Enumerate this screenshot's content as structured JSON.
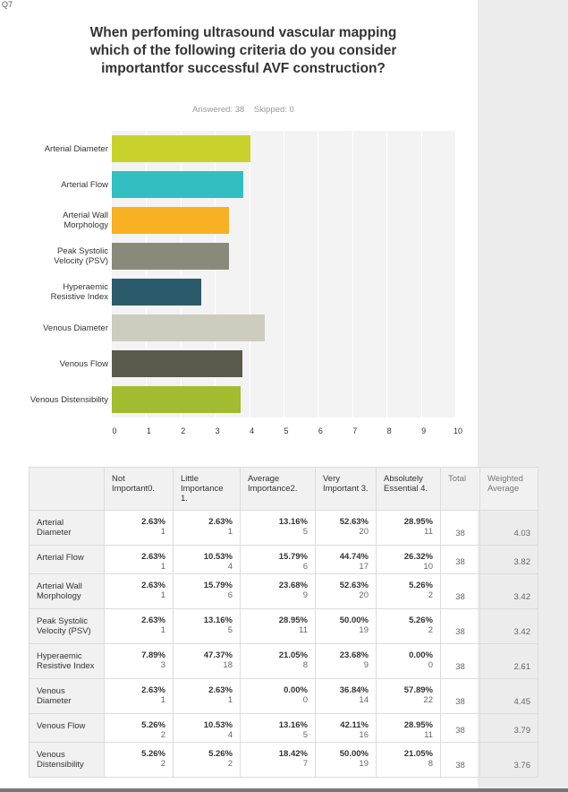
{
  "question": {
    "number_label": "Q7",
    "title": "When perfoming ultrasound vascular mapping which of the following criteria do you consider importantfor successful AVF construction?",
    "answered": "Answered: 38",
    "skipped": "Skipped: 0"
  },
  "chart_data": {
    "type": "bar",
    "orientation": "horizontal",
    "categories": [
      "Arterial Diameter",
      "Arterial Flow",
      "Arterial Wall Morphology",
      "Peak Systolic Velocity (PSV)",
      "Hyperaemic Resistive Index",
      "Venous Diameter",
      "Venous Flow",
      "Venous Distensibility"
    ],
    "values": [
      4.03,
      3.82,
      3.42,
      3.42,
      2.61,
      4.45,
      3.79,
      3.76
    ],
    "colors": [
      "#c9d22d",
      "#33bfc1",
      "#f7b122",
      "#8a8a7b",
      "#2b5b6b",
      "#ccccbf",
      "#5b5a4d",
      "#a2bc2f"
    ],
    "xlim": [
      0,
      10
    ],
    "xticks": [
      "0",
      "1",
      "2",
      "3",
      "4",
      "5",
      "6",
      "7",
      "8",
      "9",
      "10"
    ],
    "grid": true
  },
  "table": {
    "columns": [
      "Not Important0.",
      "Little Importance 1.",
      "Average Importance2.",
      "Very Important 3.",
      "Absolutely Essential 4.",
      "Total",
      "Weighted Average"
    ],
    "rows": [
      {
        "label": "Arterial Diameter",
        "cells": [
          {
            "pct": "2.63%",
            "n": "1"
          },
          {
            "pct": "2.63%",
            "n": "1"
          },
          {
            "pct": "13.16%",
            "n": "5"
          },
          {
            "pct": "52.63%",
            "n": "20"
          },
          {
            "pct": "28.95%",
            "n": "11"
          }
        ],
        "total": "38",
        "avg": "4.03"
      },
      {
        "label": "Arterial Flow",
        "cells": [
          {
            "pct": "2.63%",
            "n": "1"
          },
          {
            "pct": "10.53%",
            "n": "4"
          },
          {
            "pct": "15.79%",
            "n": "6"
          },
          {
            "pct": "44.74%",
            "n": "17"
          },
          {
            "pct": "26.32%",
            "n": "10"
          }
        ],
        "total": "38",
        "avg": "3.82"
      },
      {
        "label": "Arterial Wall Morphology",
        "cells": [
          {
            "pct": "2.63%",
            "n": "1"
          },
          {
            "pct": "15.79%",
            "n": "6"
          },
          {
            "pct": "23.68%",
            "n": "9"
          },
          {
            "pct": "52.63%",
            "n": "20"
          },
          {
            "pct": "5.26%",
            "n": "2"
          }
        ],
        "total": "38",
        "avg": "3.42"
      },
      {
        "label": "Peak Systolic Velocity (PSV)",
        "cells": [
          {
            "pct": "2.63%",
            "n": "1"
          },
          {
            "pct": "13.16%",
            "n": "5"
          },
          {
            "pct": "28.95%",
            "n": "11"
          },
          {
            "pct": "50.00%",
            "n": "19"
          },
          {
            "pct": "5.26%",
            "n": "2"
          }
        ],
        "total": "38",
        "avg": "3.42"
      },
      {
        "label": "Hyperaemic Resistive Index",
        "cells": [
          {
            "pct": "7.89%",
            "n": "3"
          },
          {
            "pct": "47.37%",
            "n": "18"
          },
          {
            "pct": "21.05%",
            "n": "8"
          },
          {
            "pct": "23.68%",
            "n": "9"
          },
          {
            "pct": "0.00%",
            "n": "0"
          }
        ],
        "total": "38",
        "avg": "2.61"
      },
      {
        "label": "Venous Diameter",
        "cells": [
          {
            "pct": "2.63%",
            "n": "1"
          },
          {
            "pct": "2.63%",
            "n": "1"
          },
          {
            "pct": "0.00%",
            "n": "0"
          },
          {
            "pct": "36.84%",
            "n": "14"
          },
          {
            "pct": "57.89%",
            "n": "22"
          }
        ],
        "total": "38",
        "avg": "4.45"
      },
      {
        "label": "Venous Flow",
        "cells": [
          {
            "pct": "5.26%",
            "n": "2"
          },
          {
            "pct": "10.53%",
            "n": "4"
          },
          {
            "pct": "13.16%",
            "n": "5"
          },
          {
            "pct": "42.11%",
            "n": "16"
          },
          {
            "pct": "28.95%",
            "n": "11"
          }
        ],
        "total": "38",
        "avg": "3.79"
      },
      {
        "label": "Venous Distensibility",
        "cells": [
          {
            "pct": "5.26%",
            "n": "2"
          },
          {
            "pct": "5.26%",
            "n": "2"
          },
          {
            "pct": "18.42%",
            "n": "7"
          },
          {
            "pct": "50.00%",
            "n": "19"
          },
          {
            "pct": "21.05%",
            "n": "8"
          }
        ],
        "total": "38",
        "avg": "3.76"
      }
    ]
  }
}
